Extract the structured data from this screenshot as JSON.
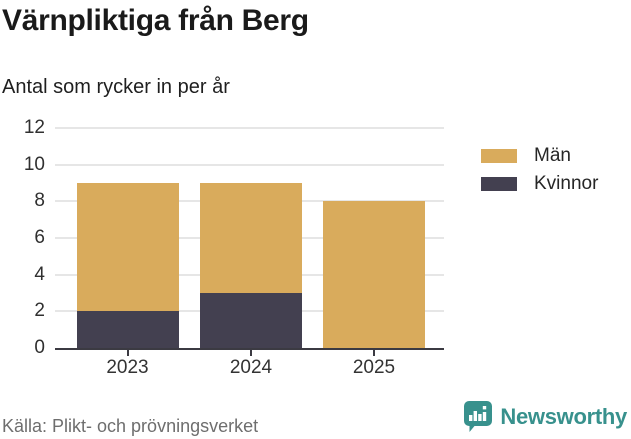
{
  "header": {
    "title": "Värnpliktiga från Berg",
    "subtitle": "Antal som rycker in per år"
  },
  "chart_data": {
    "type": "bar",
    "stacked": true,
    "categories": [
      "2023",
      "2024",
      "2025"
    ],
    "series": [
      {
        "name": "Män",
        "color": "#d9ab5c",
        "values": [
          7,
          6,
          8
        ]
      },
      {
        "name": "Kvinnor",
        "color": "#434050",
        "values": [
          2,
          3,
          0
        ]
      }
    ],
    "stack_bottom_to_top": [
      "Kvinnor",
      "Män"
    ],
    "totals": [
      9,
      9,
      8
    ],
    "ylim": [
      0,
      12
    ],
    "yticks": [
      0,
      2,
      4,
      6,
      8,
      10,
      12
    ],
    "grid": true,
    "legend_position": "right",
    "gridline_color": "#e6e6e6",
    "axis_color": "#3b3a42"
  },
  "footer": {
    "source": "Källa: Plikt- och prövningsverket",
    "brand": "Newsworthy",
    "brand_color": "#38918d"
  }
}
